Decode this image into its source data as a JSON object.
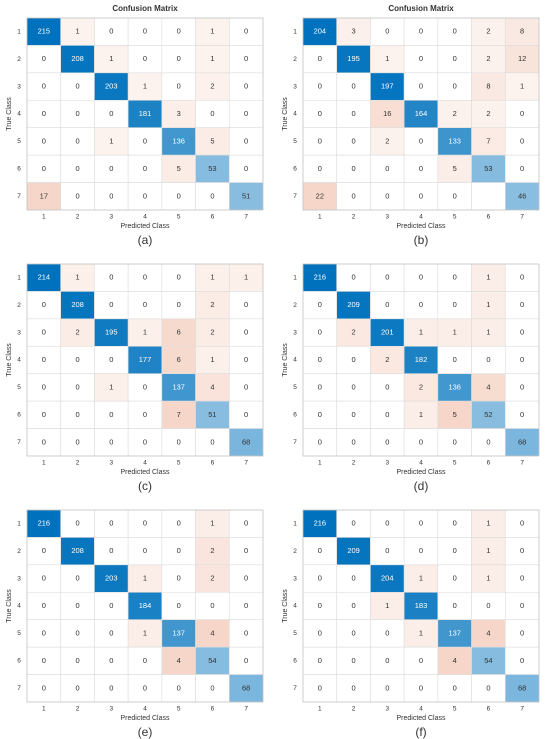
{
  "chart_data": [
    {
      "type": "heatmap",
      "title": "Confusion Matrix",
      "caption": "(a)",
      "x_label": "Predicted Class",
      "y_label": "True Class",
      "classes": [
        "1",
        "2",
        "3",
        "4",
        "5",
        "6",
        "7"
      ],
      "diagonal_color": "#0072bd",
      "off_diagonal_color": "#d95319",
      "values": [
        [
          215,
          1,
          0,
          0,
          0,
          1,
          0
        ],
        [
          0,
          208,
          1,
          0,
          0,
          1,
          0
        ],
        [
          0,
          0,
          203,
          1,
          0,
          2,
          0
        ],
        [
          0,
          0,
          0,
          181,
          3,
          0,
          0
        ],
        [
          0,
          0,
          1,
          0,
          136,
          5,
          0
        ],
        [
          0,
          0,
          0,
          0,
          5,
          53,
          0
        ],
        [
          17,
          0,
          0,
          0,
          0,
          0,
          51
        ]
      ]
    },
    {
      "type": "heatmap",
      "title": "Confusion Matrix",
      "caption": "(b)",
      "x_label": "Predicted Class",
      "y_label": "True Class",
      "classes": [
        "1",
        "2",
        "3",
        "4",
        "5",
        "6",
        "7"
      ],
      "diagonal_color": "#0072bd",
      "off_diagonal_color": "#d95319",
      "values": [
        [
          204,
          3,
          0,
          0,
          0,
          2,
          8
        ],
        [
          0,
          195,
          1,
          0,
          0,
          2,
          12
        ],
        [
          0,
          0,
          197,
          0,
          0,
          8,
          1
        ],
        [
          0,
          0,
          16,
          164,
          2,
          2,
          0
        ],
        [
          0,
          0,
          2,
          0,
          133,
          7,
          0
        ],
        [
          0,
          0,
          0,
          0,
          5,
          53,
          0
        ],
        [
          22,
          0,
          0,
          0,
          0,
          null,
          46
        ]
      ]
    },
    {
      "type": "heatmap",
      "caption": "(c)",
      "x_label": "Predicted Class",
      "y_label": "True Class",
      "classes": [
        "1",
        "2",
        "3",
        "4",
        "5",
        "6",
        "7"
      ],
      "diagonal_color": "#0072bd",
      "off_diagonal_color": "#d95319",
      "values": [
        [
          214,
          1,
          0,
          0,
          0,
          1,
          1
        ],
        [
          0,
          208,
          0,
          0,
          0,
          2,
          0
        ],
        [
          0,
          2,
          195,
          1,
          6,
          2,
          0
        ],
        [
          0,
          0,
          0,
          177,
          6,
          1,
          0
        ],
        [
          0,
          0,
          1,
          0,
          137,
          4,
          0
        ],
        [
          0,
          0,
          0,
          0,
          7,
          51,
          0
        ],
        [
          0,
          0,
          0,
          0,
          0,
          0,
          68
        ]
      ]
    },
    {
      "type": "heatmap",
      "caption": "(d)",
      "x_label": "Predicted Class",
      "y_label": "True Class",
      "classes": [
        "1",
        "2",
        "3",
        "4",
        "5",
        "6",
        "7"
      ],
      "diagonal_color": "#0072bd",
      "off_diagonal_color": "#d95319",
      "values": [
        [
          216,
          0,
          0,
          0,
          0,
          1,
          0
        ],
        [
          0,
          209,
          0,
          0,
          0,
          1,
          0
        ],
        [
          0,
          2,
          201,
          1,
          1,
          1,
          0
        ],
        [
          0,
          0,
          2,
          182,
          0,
          0,
          0
        ],
        [
          0,
          0,
          0,
          2,
          136,
          4,
          0
        ],
        [
          0,
          0,
          0,
          1,
          5,
          52,
          0
        ],
        [
          0,
          0,
          0,
          0,
          0,
          0,
          68
        ]
      ]
    },
    {
      "type": "heatmap",
      "caption": "(e)",
      "x_label": "Predicted Class",
      "y_label": "True Class",
      "classes": [
        "1",
        "2",
        "3",
        "4",
        "5",
        "6",
        "7"
      ],
      "diagonal_color": "#0072bd",
      "off_diagonal_color": "#d95319",
      "values": [
        [
          216,
          0,
          0,
          0,
          0,
          1,
          0
        ],
        [
          0,
          208,
          0,
          0,
          0,
          2,
          0
        ],
        [
          0,
          0,
          203,
          1,
          0,
          2,
          0
        ],
        [
          0,
          0,
          0,
          184,
          0,
          0,
          0
        ],
        [
          0,
          0,
          0,
          1,
          137,
          4,
          0
        ],
        [
          0,
          0,
          0,
          0,
          4,
          54,
          0
        ],
        [
          0,
          0,
          0,
          0,
          0,
          0,
          68
        ]
      ]
    },
    {
      "type": "heatmap",
      "caption": "(f)",
      "x_label": "Predicted Class",
      "y_label": "True Class",
      "classes": [
        "1",
        "2",
        "3",
        "4",
        "5",
        "6",
        "7"
      ],
      "diagonal_color": "#0072bd",
      "off_diagonal_color": "#d95319",
      "values": [
        [
          216,
          0,
          0,
          0,
          0,
          1,
          0
        ],
        [
          0,
          209,
          0,
          0,
          0,
          1,
          0
        ],
        [
          0,
          0,
          204,
          1,
          0,
          1,
          0
        ],
        [
          0,
          0,
          1,
          183,
          0,
          0,
          0
        ],
        [
          0,
          0,
          0,
          1,
          137,
          4,
          0
        ],
        [
          0,
          0,
          0,
          0,
          4,
          54,
          0
        ],
        [
          0,
          0,
          0,
          0,
          0,
          0,
          68
        ]
      ]
    }
  ]
}
